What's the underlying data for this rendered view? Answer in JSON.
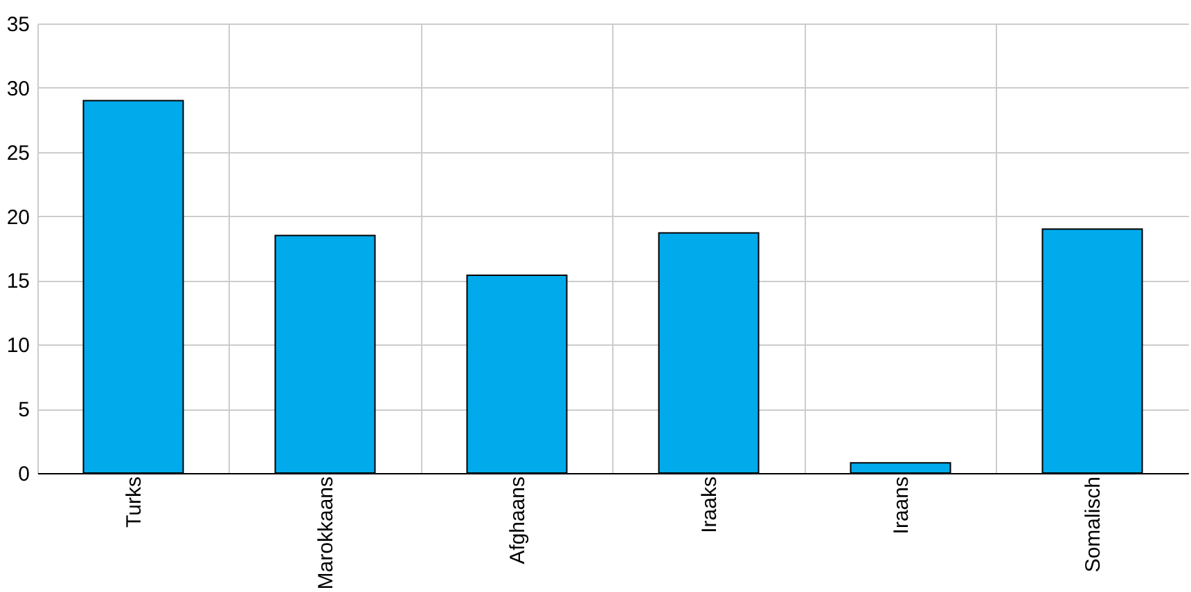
{
  "chart_data": {
    "type": "bar",
    "categories": [
      "Turks",
      "Marokkaans",
      "Afghaans",
      "Iraaks",
      "Iraans",
      "Somalisch"
    ],
    "values": [
      29.0,
      18.5,
      15.4,
      18.7,
      0.8,
      19.0
    ],
    "color": "#00aaeb",
    "ylim": [
      0,
      35
    ],
    "yticks": [
      0,
      5,
      10,
      15,
      20,
      25,
      30,
      35
    ],
    "grid": true
  }
}
